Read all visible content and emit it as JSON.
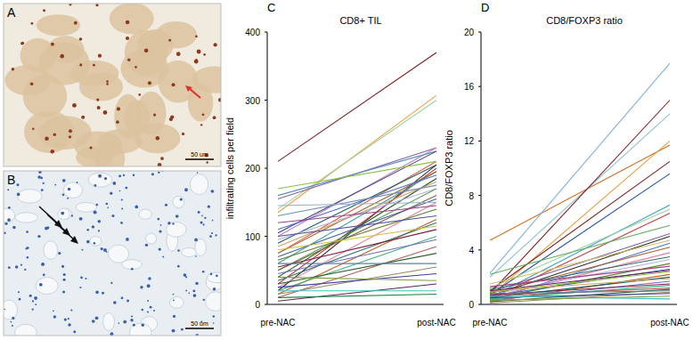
{
  "images": [
    {
      "label": "A",
      "scale_bar": "50 um"
    },
    {
      "label": "B",
      "scale_bar": "50 um"
    }
  ],
  "chart_data": [
    {
      "type": "line",
      "annotations": [
        "C"
      ],
      "title": "CD8+ TIL",
      "y_label": "infiltrating cells per field",
      "categories": [
        "pre-NAC",
        "post-NAC"
      ],
      "ylim": [
        0,
        400
      ],
      "yticks": [
        0,
        100,
        200,
        300,
        400
      ],
      "series": [
        {
          "color": "#7b1f1f",
          "values": [
            210,
            370
          ]
        },
        {
          "color": "#f0a040",
          "values": [
            135,
            307
          ]
        },
        {
          "color": "#a0d0a0",
          "values": [
            140,
            300
          ]
        },
        {
          "color": "#8060a0",
          "values": [
            155,
            230
          ]
        },
        {
          "color": "#c080c0",
          "values": [
            100,
            230
          ]
        },
        {
          "color": "#6090c0",
          "values": [
            160,
            225
          ]
        },
        {
          "color": "#404080",
          "values": [
            105,
            225
          ]
        },
        {
          "color": "#e06040",
          "values": [
            75,
            210
          ]
        },
        {
          "color": "#90c040",
          "values": [
            170,
            210
          ]
        },
        {
          "color": "#206060",
          "values": [
            90,
            205
          ]
        },
        {
          "color": "#303030",
          "values": [
            20,
            205
          ]
        },
        {
          "color": "#c04040",
          "values": [
            30,
            200
          ]
        },
        {
          "color": "#40a0a0",
          "values": [
            60,
            195
          ]
        },
        {
          "color": "#a06030",
          "values": [
            75,
            195
          ]
        },
        {
          "color": "#5070d0",
          "values": [
            110,
            190
          ]
        },
        {
          "color": "#205020",
          "values": [
            40,
            185
          ]
        },
        {
          "color": "#d0a060",
          "values": [
            85,
            180
          ]
        },
        {
          "color": "#7090b0",
          "values": [
            130,
            175
          ]
        },
        {
          "color": "#b0b0e0",
          "values": [
            95,
            170
          ]
        },
        {
          "color": "#60a060",
          "values": [
            50,
            170
          ]
        },
        {
          "color": "#806040",
          "values": [
            50,
            160
          ]
        },
        {
          "color": "#4060a0",
          "values": [
            70,
            155
          ]
        },
        {
          "color": "#e080a0",
          "values": [
            25,
            150
          ]
        },
        {
          "color": "#90b0d0",
          "values": [
            145,
            150
          ]
        },
        {
          "color": "#a04080",
          "values": [
            120,
            145
          ]
        },
        {
          "color": "#608030",
          "values": [
            65,
            140
          ]
        },
        {
          "color": "#5050a0",
          "values": [
            100,
            130
          ]
        },
        {
          "color": "#c06020",
          "values": [
            15,
            125
          ]
        },
        {
          "color": "#307070",
          "values": [
            35,
            120
          ]
        },
        {
          "color": "#d0c040",
          "values": [
            80,
            115
          ]
        },
        {
          "color": "#802040",
          "values": [
            55,
            110
          ]
        },
        {
          "color": "#40b080",
          "values": [
            20,
            100
          ]
        },
        {
          "color": "#7070c0",
          "values": [
            45,
            95
          ]
        },
        {
          "color": "#b06060",
          "values": [
            10,
            85
          ]
        },
        {
          "color": "#306030",
          "values": [
            30,
            75
          ]
        },
        {
          "color": "#6080a0",
          "values": [
            60,
            60
          ]
        },
        {
          "color": "#a08060",
          "values": [
            15,
            55
          ]
        },
        {
          "color": "#4040a0",
          "values": [
            25,
            45
          ]
        },
        {
          "color": "#80a040",
          "values": [
            40,
            35
          ]
        },
        {
          "color": "#602060",
          "values": [
            5,
            30
          ]
        },
        {
          "color": "#40c0c0",
          "values": [
            20,
            20
          ]
        },
        {
          "color": "#208040",
          "values": [
            10,
            15
          ]
        }
      ]
    },
    {
      "type": "line",
      "annotations": [
        "D"
      ],
      "title": "CD8/FOXP3 ratio",
      "y_label": "CD8/FOXP3 ratio",
      "categories": [
        "pre-NAC",
        "post-NAC"
      ],
      "ylim": [
        0,
        20
      ],
      "yticks": [
        0,
        4,
        8,
        12,
        16,
        20
      ],
      "series": [
        {
          "color": "#d07020",
          "values": [
            4.7,
            11.7
          ]
        },
        {
          "color": "#80b0e0",
          "values": [
            2.3,
            17.7
          ]
        },
        {
          "color": "#90c0d0",
          "values": [
            2.0,
            14
          ]
        },
        {
          "color": "#7b1f1f",
          "values": [
            0.8,
            15
          ]
        },
        {
          "color": "#e0a040",
          "values": [
            0.6,
            12
          ]
        },
        {
          "color": "#802020",
          "values": [
            1.0,
            10.5
          ]
        },
        {
          "color": "#2050a0",
          "values": [
            0.7,
            9.6
          ]
        },
        {
          "color": "#40a0c0",
          "values": [
            0.5,
            7.3
          ]
        },
        {
          "color": "#a0d0a0",
          "values": [
            1.2,
            7
          ]
        },
        {
          "color": "#c04040",
          "values": [
            0.4,
            6.7
          ]
        },
        {
          "color": "#60b060",
          "values": [
            2.2,
            5.8
          ]
        },
        {
          "color": "#8060a0",
          "values": [
            0.9,
            5.2
          ]
        },
        {
          "color": "#303030",
          "values": [
            0.6,
            5
          ]
        },
        {
          "color": "#d0c060",
          "values": [
            1.5,
            4.7
          ]
        },
        {
          "color": "#5070d0",
          "values": [
            0.3,
            4.5
          ]
        },
        {
          "color": "#a06030",
          "values": [
            0.8,
            4.2
          ]
        },
        {
          "color": "#e080a0",
          "values": [
            0.5,
            3.8
          ]
        },
        {
          "color": "#307070",
          "values": [
            1.1,
            3.5
          ]
        },
        {
          "color": "#b0b0e0",
          "values": [
            0.7,
            3.3
          ]
        },
        {
          "color": "#608030",
          "values": [
            0.4,
            3
          ]
        },
        {
          "color": "#a04080",
          "values": [
            1.3,
            2.8
          ]
        },
        {
          "color": "#4060a0",
          "values": [
            0.6,
            2.6
          ]
        },
        {
          "color": "#90c040",
          "values": [
            0.9,
            2.4
          ]
        },
        {
          "color": "#c06020",
          "values": [
            0.2,
            2.2
          ]
        },
        {
          "color": "#206060",
          "values": [
            0.5,
            2
          ]
        },
        {
          "color": "#d0a060",
          "values": [
            1.0,
            1.9
          ]
        },
        {
          "color": "#7070c0",
          "values": [
            0.3,
            1.7
          ]
        },
        {
          "color": "#802040",
          "values": [
            0.7,
            1.5
          ]
        },
        {
          "color": "#40b080",
          "values": [
            0.4,
            1.4
          ]
        },
        {
          "color": "#b06060",
          "values": [
            0.6,
            1.2
          ]
        },
        {
          "color": "#306030",
          "values": [
            0.2,
            1.1
          ]
        },
        {
          "color": "#6080a0",
          "values": [
            0.8,
            1.0
          ]
        },
        {
          "color": "#a08060",
          "values": [
            0.1,
            0.9
          ]
        },
        {
          "color": "#4040a0",
          "values": [
            0.5,
            0.8
          ]
        },
        {
          "color": "#80a040",
          "values": [
            0.3,
            0.6
          ]
        },
        {
          "color": "#602060",
          "values": [
            1.0,
            2.5
          ]
        },
        {
          "color": "#40c0c0",
          "values": [
            0.6,
            0.4
          ]
        }
      ]
    }
  ]
}
